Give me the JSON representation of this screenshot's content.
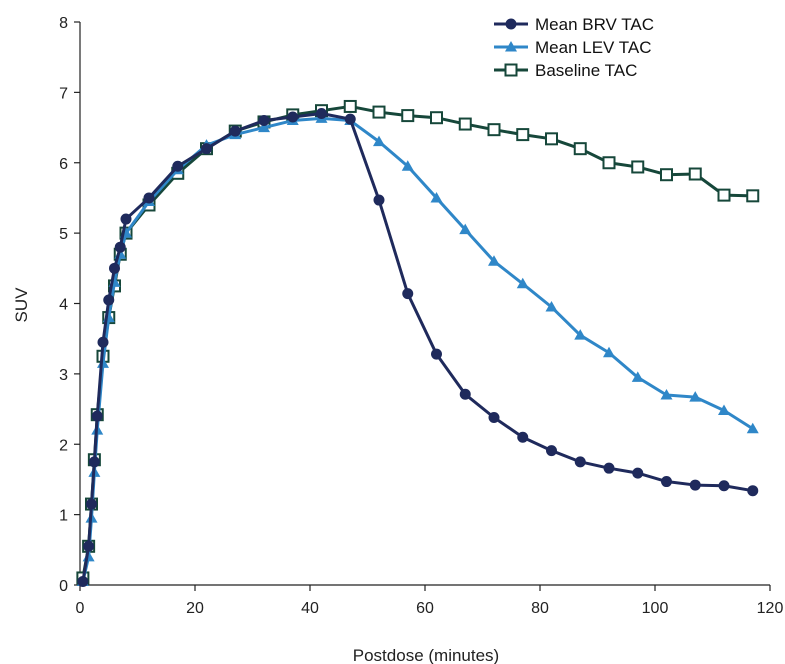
{
  "chart_data": {
    "type": "line",
    "title": "",
    "xlabel": "Postdose (minutes)",
    "ylabel": "SUV",
    "xlim": [
      0,
      120
    ],
    "ylim": [
      0,
      8
    ],
    "xticks": [
      0,
      20,
      40,
      60,
      80,
      100,
      120
    ],
    "yticks": [
      0,
      1,
      2,
      3,
      4,
      5,
      6,
      7,
      8
    ],
    "grid": false,
    "legend_position": "top-right",
    "series": [
      {
        "name": "Mean BRV TAC",
        "color": "#1f2a5c",
        "marker": "circle",
        "x": [
          0.5,
          1.5,
          2,
          2.5,
          3,
          4,
          5,
          6,
          7,
          8,
          12,
          17,
          22,
          27,
          32,
          37,
          42,
          47,
          52,
          57,
          62,
          67,
          72,
          77,
          82,
          87,
          92,
          97,
          102,
          107,
          112,
          117
        ],
        "y": [
          0.05,
          0.55,
          1.15,
          1.75,
          2.4,
          3.45,
          4.05,
          4.5,
          4.8,
          5.2,
          5.5,
          5.95,
          6.2,
          6.45,
          6.6,
          6.65,
          6.7,
          6.62,
          5.47,
          4.14,
          3.28,
          2.71,
          2.38,
          2.1,
          1.91,
          1.75,
          1.66,
          1.59,
          1.47,
          1.42,
          1.41,
          1.34
        ]
      },
      {
        "name": "Mean LEV TAC",
        "color": "#2f87c8",
        "marker": "triangle",
        "x": [
          0.5,
          1.5,
          2,
          2.5,
          3,
          4,
          5,
          6,
          7,
          8,
          12,
          17,
          22,
          27,
          32,
          37,
          42,
          47,
          52,
          57,
          62,
          67,
          72,
          77,
          82,
          87,
          92,
          97,
          102,
          107,
          112,
          117
        ],
        "y": [
          0.05,
          0.4,
          0.95,
          1.6,
          2.2,
          3.15,
          3.8,
          4.3,
          4.7,
          5.0,
          5.45,
          5.9,
          6.25,
          6.4,
          6.5,
          6.6,
          6.63,
          6.6,
          6.3,
          5.95,
          5.5,
          5.05,
          4.6,
          4.28,
          3.95,
          3.55,
          3.3,
          2.95,
          2.7,
          2.67,
          2.48,
          2.22
        ]
      },
      {
        "name": "Baseline TAC",
        "color": "#16473a",
        "marker": "square-open",
        "x": [
          0.5,
          1.5,
          2,
          2.5,
          3,
          4,
          5,
          6,
          7,
          8,
          12,
          17,
          22,
          27,
          32,
          37,
          42,
          47,
          52,
          57,
          62,
          67,
          72,
          77,
          82,
          87,
          92,
          97,
          102,
          107,
          112,
          117
        ],
        "y": [
          0.1,
          0.55,
          1.15,
          1.78,
          2.42,
          3.25,
          3.8,
          4.25,
          4.7,
          5.0,
          5.4,
          5.85,
          6.2,
          6.45,
          6.58,
          6.68,
          6.74,
          6.8,
          6.72,
          6.67,
          6.64,
          6.55,
          6.47,
          6.4,
          6.34,
          6.2,
          6.0,
          5.94,
          5.83,
          5.84,
          5.54,
          5.53
        ]
      }
    ]
  }
}
